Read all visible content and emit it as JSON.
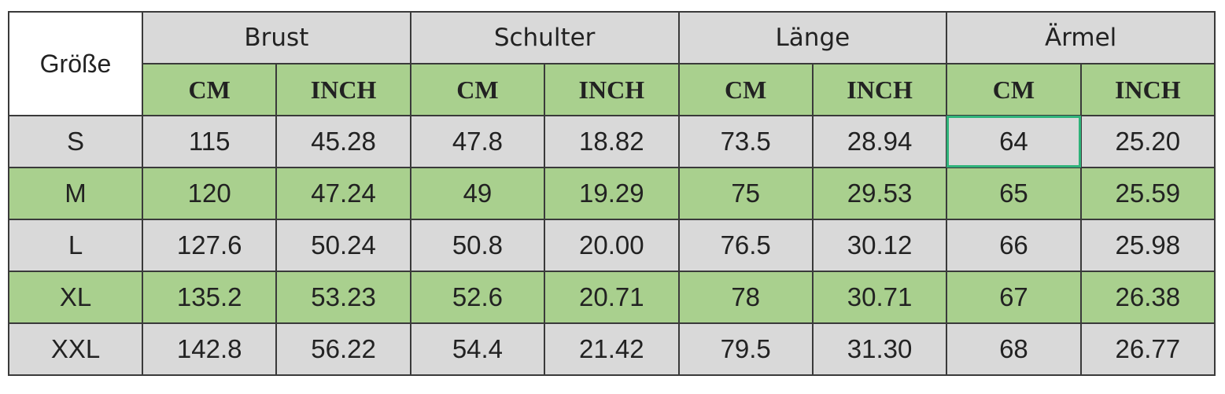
{
  "header": {
    "corner": "Größe",
    "groups": [
      "Brust",
      "Schulter",
      "Länge",
      "Ärmel"
    ],
    "units": [
      "CM",
      "INCH",
      "CM",
      "INCH",
      "CM",
      "INCH",
      "CM",
      "INCH"
    ]
  },
  "table": {
    "rows": [
      [
        "S",
        "115",
        "45.28",
        "47.8",
        "18.82",
        "73.5",
        "28.94",
        "64",
        "25.20"
      ],
      [
        "M",
        "120",
        "47.24",
        "49",
        "19.29",
        "75",
        "29.53",
        "65",
        "25.59"
      ],
      [
        "L",
        "127.6",
        "50.24",
        "50.8",
        "20.00",
        "76.5",
        "30.12",
        "66",
        "25.98"
      ],
      [
        "XL",
        "135.2",
        "53.23",
        "52.6",
        "20.71",
        "78",
        "30.71",
        "67",
        "26.38"
      ],
      [
        "XXL",
        "142.8",
        "56.22",
        "54.4",
        "21.42",
        "79.5",
        "31.30",
        "68",
        "26.77"
      ]
    ]
  }
}
